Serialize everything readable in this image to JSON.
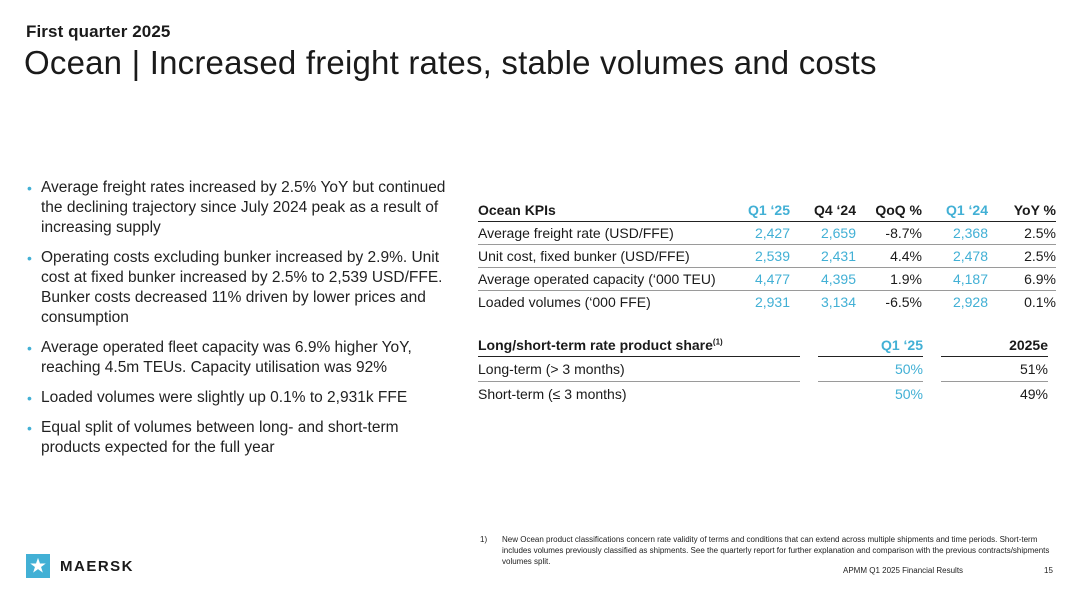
{
  "header": {
    "kicker": "First quarter 2025",
    "title": "Ocean | Increased freight rates, stable volumes and costs"
  },
  "bullets": [
    "Average freight rates increased by 2.5% YoY but continued the declining trajectory since July 2024 peak as a result of increasing supply",
    "Operating costs excluding bunker increased by 2.9%. Unit cost at fixed bunker increased by 2.5% to 2,539 USD/FFE. Bunker costs decreased 11% driven by lower prices and consumption",
    "Average operated fleet capacity was 6.9% higher YoY, reaching 4.5m TEUs. Capacity utilisation was 92%",
    "Loaded volumes were slightly up 0.1% to 2,931k FFE",
    "Equal split of volumes between long- and short-term products expected for the full year"
  ],
  "kpi_table": {
    "headers": [
      "Ocean KPIs",
      "Q1 ‘25",
      "Q4 ‘24",
      "QoQ %",
      "Q1 ‘24",
      "YoY %"
    ],
    "rows": [
      [
        "Average freight rate (USD/FFE)",
        "2,427",
        "2,659",
        "-8.7%",
        "2,368",
        "2.5%"
      ],
      [
        "Unit cost, fixed bunker (USD/FFE)",
        "2,539",
        "2,431",
        "4.4%",
        "2,478",
        "2.5%"
      ],
      [
        "Average operated capacity (‘000 TEU)",
        "4,477",
        "4,395",
        "1.9%",
        "4,187",
        "6.9%"
      ],
      [
        "Loaded volumes (‘000 FFE)",
        "2,931",
        "3,134",
        "-6.5%",
        "2,928",
        "0.1%"
      ]
    ]
  },
  "share_table": {
    "header_label": "Long/short-term rate product share",
    "header_sup": "(1)",
    "col1": "Q1 ‘25",
    "col2": "2025e",
    "rows": [
      [
        "Long-term (> 3 months)",
        "50%",
        "51%"
      ],
      [
        "Short-term (≤ 3 months)",
        "50%",
        "49%"
      ]
    ]
  },
  "footnote": {
    "num": "1)",
    "text": "New Ocean product classifications concern rate validity of terms and conditions that can extend across multiple shipments and time periods. Short-term includes volumes previously classified as shipments. See the quarterly report for further explanation and comparison with the previous contracts/shipments volumes split."
  },
  "footer": {
    "brand": "MAERSK",
    "source": "APMM Q1 2025 Financial Results",
    "page": "15"
  },
  "colors": {
    "accent": "#42b0d5",
    "text": "#1a1a1a"
  },
  "icons": {
    "logo": "maersk-star-icon"
  }
}
